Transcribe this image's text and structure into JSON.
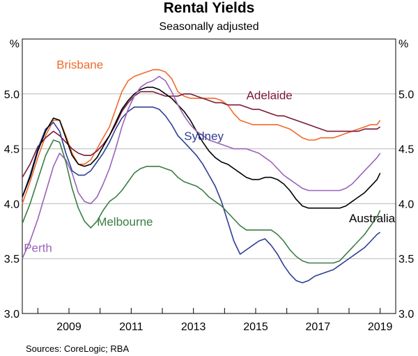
{
  "chart_data": {
    "type": "line",
    "title": "Rental Yields",
    "subtitle": "Seasonally adjusted",
    "y_unit_left": "%",
    "y_unit_right": "%",
    "ylim": [
      3.0,
      5.5
    ],
    "xlim": [
      2007.5,
      2019.5
    ],
    "y_ticks": [
      "3.0",
      "3.5",
      "4.0",
      "4.5",
      "5.0"
    ],
    "y_tick_values": [
      3.0,
      3.5,
      4.0,
      4.5,
      5.0
    ],
    "x_ticks": [
      "2009",
      "2011",
      "2013",
      "2015",
      "2017",
      "2019"
    ],
    "x_tick_values": [
      2009,
      2011,
      2013,
      2015,
      2017,
      2019
    ],
    "grid": true,
    "source": "Sources: CoreLogic; RBA",
    "series": [
      {
        "name": "Brisbane",
        "color": "#f06a2b",
        "label_at": [
          2008.6,
          5.23
        ],
        "x": [
          2007.5,
          2007.75,
          2008.0,
          2008.25,
          2008.5,
          2008.7,
          2008.9,
          2009.1,
          2009.3,
          2009.5,
          2009.7,
          2009.9,
          2010.1,
          2010.3,
          2010.5,
          2010.7,
          2010.9,
          2011.1,
          2011.3,
          2011.5,
          2011.7,
          2011.9,
          2012.1,
          2012.3,
          2012.5,
          2012.7,
          2012.9,
          2013.1,
          2013.3,
          2013.5,
          2013.7,
          2013.9,
          2014.1,
          2014.3,
          2014.5,
          2014.7,
          2014.9,
          2015.1,
          2015.3,
          2015.5,
          2015.7,
          2015.9,
          2016.1,
          2016.3,
          2016.5,
          2016.7,
          2016.9,
          2017.1,
          2017.3,
          2017.5,
          2017.7,
          2017.9,
          2018.1,
          2018.3,
          2018.5,
          2018.7,
          2018.9,
          2019.0
        ],
        "values": [
          4.0,
          4.2,
          4.42,
          4.62,
          4.76,
          4.76,
          4.62,
          4.46,
          4.36,
          4.36,
          4.4,
          4.5,
          4.6,
          4.7,
          4.86,
          5.02,
          5.12,
          5.16,
          5.18,
          5.2,
          5.22,
          5.22,
          5.2,
          5.14,
          5.02,
          4.98,
          4.96,
          4.96,
          4.96,
          4.96,
          4.96,
          4.94,
          4.9,
          4.82,
          4.76,
          4.74,
          4.72,
          4.72,
          4.72,
          4.72,
          4.72,
          4.7,
          4.68,
          4.64,
          4.6,
          4.58,
          4.58,
          4.6,
          4.6,
          4.6,
          4.62,
          4.64,
          4.66,
          4.68,
          4.7,
          4.72,
          4.72,
          4.76
        ]
      },
      {
        "name": "Adelaide",
        "color": "#7b1a36",
        "label_at": [
          2014.7,
          4.95
        ],
        "x": [
          2007.5,
          2007.75,
          2008.0,
          2008.25,
          2008.5,
          2008.7,
          2008.9,
          2009.1,
          2009.3,
          2009.5,
          2009.7,
          2009.9,
          2010.1,
          2010.3,
          2010.5,
          2010.7,
          2010.9,
          2011.1,
          2011.3,
          2011.5,
          2011.7,
          2011.9,
          2012.1,
          2012.3,
          2012.5,
          2012.7,
          2012.9,
          2013.1,
          2013.3,
          2013.5,
          2013.7,
          2013.9,
          2014.1,
          2014.3,
          2014.5,
          2014.7,
          2014.9,
          2015.1,
          2015.3,
          2015.5,
          2015.7,
          2015.9,
          2016.1,
          2016.3,
          2016.5,
          2016.7,
          2016.9,
          2017.1,
          2017.3,
          2017.5,
          2017.7,
          2017.9,
          2018.1,
          2018.3,
          2018.5,
          2018.7,
          2018.9,
          2019.0
        ],
        "values": [
          4.24,
          4.36,
          4.52,
          4.6,
          4.66,
          4.62,
          4.56,
          4.5,
          4.46,
          4.44,
          4.44,
          4.48,
          4.54,
          4.62,
          4.72,
          4.84,
          4.92,
          4.98,
          5.02,
          5.02,
          5.02,
          5.0,
          4.98,
          4.98,
          4.98,
          5.0,
          5.0,
          4.98,
          4.96,
          4.94,
          4.92,
          4.92,
          4.9,
          4.9,
          4.9,
          4.88,
          4.86,
          4.86,
          4.84,
          4.82,
          4.8,
          4.8,
          4.78,
          4.76,
          4.74,
          4.72,
          4.7,
          4.68,
          4.66,
          4.66,
          4.66,
          4.66,
          4.66,
          4.66,
          4.68,
          4.68,
          4.68,
          4.7
        ]
      },
      {
        "name": "Sydney",
        "color": "#2e3e94",
        "label_at": [
          2012.7,
          4.58
        ],
        "x": [
          2007.5,
          2007.75,
          2008.0,
          2008.25,
          2008.5,
          2008.7,
          2008.9,
          2009.1,
          2009.3,
          2009.5,
          2009.7,
          2009.9,
          2010.1,
          2010.3,
          2010.5,
          2010.7,
          2010.9,
          2011.1,
          2011.3,
          2011.5,
          2011.7,
          2011.9,
          2012.1,
          2012.3,
          2012.5,
          2012.7,
          2012.9,
          2013.1,
          2013.3,
          2013.5,
          2013.7,
          2013.9,
          2014.1,
          2014.3,
          2014.5,
          2014.7,
          2014.9,
          2015.1,
          2015.3,
          2015.5,
          2015.7,
          2015.9,
          2016.1,
          2016.3,
          2016.5,
          2016.7,
          2016.9,
          2017.1,
          2017.3,
          2017.5,
          2017.7,
          2017.9,
          2018.1,
          2018.3,
          2018.5,
          2018.7,
          2018.9,
          2019.0
        ],
        "values": [
          4.06,
          4.26,
          4.5,
          4.68,
          4.74,
          4.66,
          4.46,
          4.3,
          4.26,
          4.26,
          4.3,
          4.38,
          4.46,
          4.56,
          4.68,
          4.78,
          4.84,
          4.88,
          4.88,
          4.88,
          4.88,
          4.86,
          4.8,
          4.72,
          4.62,
          4.56,
          4.5,
          4.44,
          4.36,
          4.26,
          4.16,
          4.02,
          3.84,
          3.66,
          3.54,
          3.58,
          3.62,
          3.66,
          3.68,
          3.62,
          3.54,
          3.44,
          3.36,
          3.3,
          3.28,
          3.3,
          3.34,
          3.36,
          3.38,
          3.4,
          3.44,
          3.48,
          3.52,
          3.56,
          3.6,
          3.66,
          3.72,
          3.74
        ]
      },
      {
        "name": "Australia",
        "color": "#000000",
        "label_at": [
          2018.0,
          3.83
        ],
        "x": [
          2007.5,
          2007.75,
          2008.0,
          2008.25,
          2008.5,
          2008.7,
          2008.9,
          2009.1,
          2009.3,
          2009.5,
          2009.7,
          2009.9,
          2010.1,
          2010.3,
          2010.5,
          2010.7,
          2010.9,
          2011.1,
          2011.3,
          2011.5,
          2011.7,
          2011.9,
          2012.1,
          2012.3,
          2012.5,
          2012.7,
          2012.9,
          2013.1,
          2013.3,
          2013.5,
          2013.7,
          2013.9,
          2014.1,
          2014.3,
          2014.5,
          2014.7,
          2014.9,
          2015.1,
          2015.3,
          2015.5,
          2015.7,
          2015.9,
          2016.1,
          2016.3,
          2016.5,
          2016.7,
          2016.9,
          2017.1,
          2017.3,
          2017.5,
          2017.7,
          2017.9,
          2018.1,
          2018.3,
          2018.5,
          2018.7,
          2018.9,
          2019.0
        ],
        "values": [
          4.06,
          4.24,
          4.48,
          4.66,
          4.78,
          4.76,
          4.6,
          4.44,
          4.36,
          4.34,
          4.36,
          4.42,
          4.52,
          4.62,
          4.74,
          4.86,
          4.94,
          5.0,
          5.04,
          5.06,
          5.06,
          5.04,
          5.0,
          4.96,
          4.9,
          4.84,
          4.76,
          4.66,
          4.56,
          4.48,
          4.42,
          4.38,
          4.36,
          4.32,
          4.28,
          4.24,
          4.22,
          4.22,
          4.24,
          4.24,
          4.22,
          4.18,
          4.12,
          4.04,
          3.98,
          3.96,
          3.96,
          3.96,
          3.96,
          3.96,
          3.96,
          3.98,
          4.02,
          4.06,
          4.1,
          4.16,
          4.22,
          4.28
        ]
      },
      {
        "name": "Perth",
        "color": "#9a63b8",
        "label_at": [
          2007.55,
          3.56
        ],
        "x": [
          2007.5,
          2007.75,
          2008.0,
          2008.25,
          2008.5,
          2008.7,
          2008.9,
          2009.1,
          2009.3,
          2009.5,
          2009.7,
          2009.9,
          2010.1,
          2010.3,
          2010.5,
          2010.7,
          2010.9,
          2011.1,
          2011.3,
          2011.5,
          2011.7,
          2011.9,
          2012.1,
          2012.3,
          2012.5,
          2012.7,
          2012.9,
          2013.1,
          2013.3,
          2013.5,
          2013.7,
          2013.9,
          2014.1,
          2014.3,
          2014.5,
          2014.7,
          2014.9,
          2015.1,
          2015.3,
          2015.5,
          2015.7,
          2015.9,
          2016.1,
          2016.3,
          2016.5,
          2016.7,
          2016.9,
          2017.1,
          2017.3,
          2017.5,
          2017.7,
          2017.9,
          2018.1,
          2018.3,
          2018.5,
          2018.7,
          2018.9,
          2019.0
        ],
        "values": [
          3.5,
          3.66,
          3.86,
          4.1,
          4.34,
          4.46,
          4.4,
          4.28,
          4.1,
          4.02,
          4.0,
          4.06,
          4.18,
          4.32,
          4.5,
          4.7,
          4.86,
          4.98,
          5.06,
          5.1,
          5.12,
          5.16,
          5.12,
          5.02,
          4.9,
          4.8,
          4.72,
          4.66,
          4.62,
          4.58,
          4.56,
          4.54,
          4.52,
          4.5,
          4.5,
          4.5,
          4.48,
          4.46,
          4.42,
          4.38,
          4.32,
          4.26,
          4.22,
          4.18,
          4.14,
          4.12,
          4.12,
          4.12,
          4.12,
          4.12,
          4.12,
          4.14,
          4.18,
          4.24,
          4.3,
          4.36,
          4.42,
          4.46
        ]
      },
      {
        "name": "Melbourne",
        "color": "#3a7d44",
        "label_at": [
          2009.9,
          3.8
        ],
        "x": [
          2007.5,
          2007.75,
          2008.0,
          2008.25,
          2008.5,
          2008.7,
          2008.9,
          2009.1,
          2009.3,
          2009.5,
          2009.7,
          2009.9,
          2010.1,
          2010.3,
          2010.5,
          2010.7,
          2010.9,
          2011.1,
          2011.3,
          2011.5,
          2011.7,
          2011.9,
          2012.1,
          2012.3,
          2012.5,
          2012.7,
          2012.9,
          2013.1,
          2013.3,
          2013.5,
          2013.7,
          2013.9,
          2014.1,
          2014.3,
          2014.5,
          2014.7,
          2014.9,
          2015.1,
          2015.3,
          2015.5,
          2015.7,
          2015.9,
          2016.1,
          2016.3,
          2016.5,
          2016.7,
          2016.9,
          2017.1,
          2017.3,
          2017.5,
          2017.7,
          2017.9,
          2018.1,
          2018.3,
          2018.5,
          2018.7,
          2018.9,
          2019.0
        ],
        "values": [
          3.82,
          4.0,
          4.22,
          4.44,
          4.58,
          4.56,
          4.38,
          4.14,
          3.96,
          3.84,
          3.78,
          3.84,
          3.94,
          4.02,
          4.06,
          4.12,
          4.2,
          4.28,
          4.32,
          4.34,
          4.34,
          4.34,
          4.32,
          4.3,
          4.24,
          4.2,
          4.18,
          4.16,
          4.12,
          4.06,
          4.02,
          3.98,
          3.92,
          3.86,
          3.8,
          3.76,
          3.76,
          3.76,
          3.76,
          3.76,
          3.72,
          3.66,
          3.58,
          3.52,
          3.48,
          3.46,
          3.46,
          3.46,
          3.46,
          3.46,
          3.48,
          3.54,
          3.6,
          3.66,
          3.72,
          3.8,
          3.88,
          3.94
        ]
      }
    ]
  }
}
